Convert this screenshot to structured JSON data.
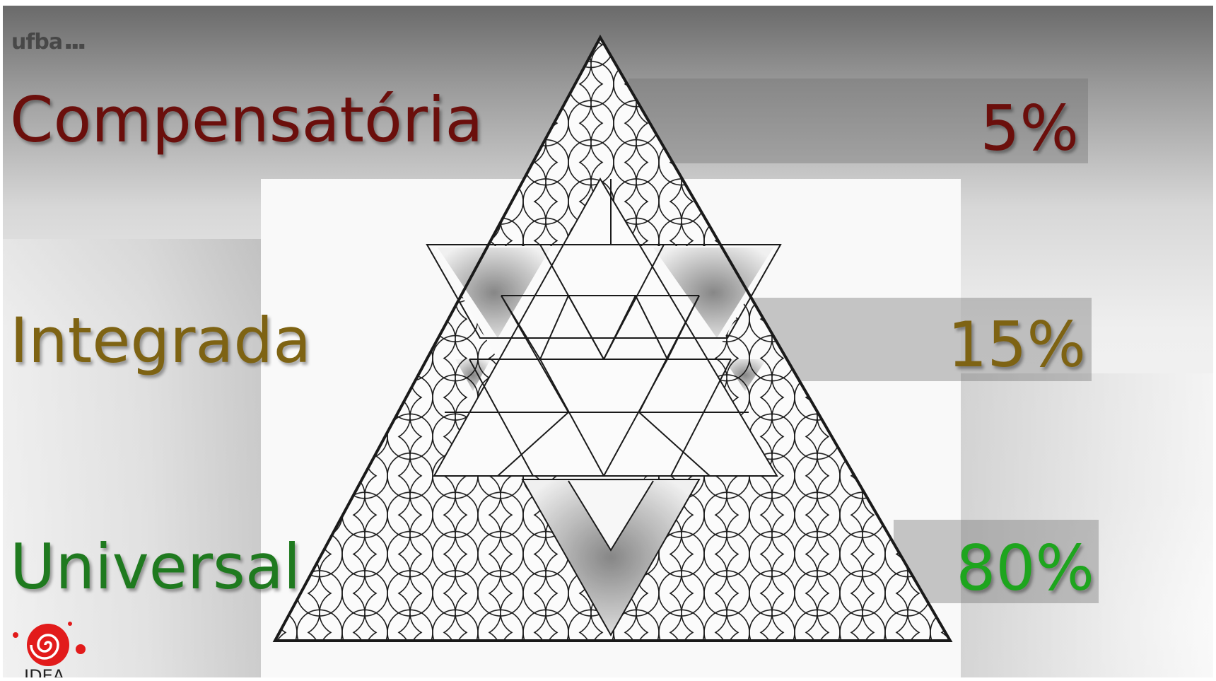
{
  "colors": {
    "compensatoria": "#6b0f0c",
    "integrada": "#7e6313",
    "universal": "#1f7a1f",
    "universal_pct": "#1ea51e",
    "logo_red": "#e21b1b"
  },
  "logos": {
    "top_left": "ufba",
    "bottom_left_text": "IDEA"
  },
  "rows": [
    {
      "label": "Compensatória",
      "percent": "5%",
      "value": 5
    },
    {
      "label": "Integrada",
      "percent": "15%",
      "value": 15
    },
    {
      "label": "Universal",
      "percent": "80%",
      "value": 80
    }
  ]
}
